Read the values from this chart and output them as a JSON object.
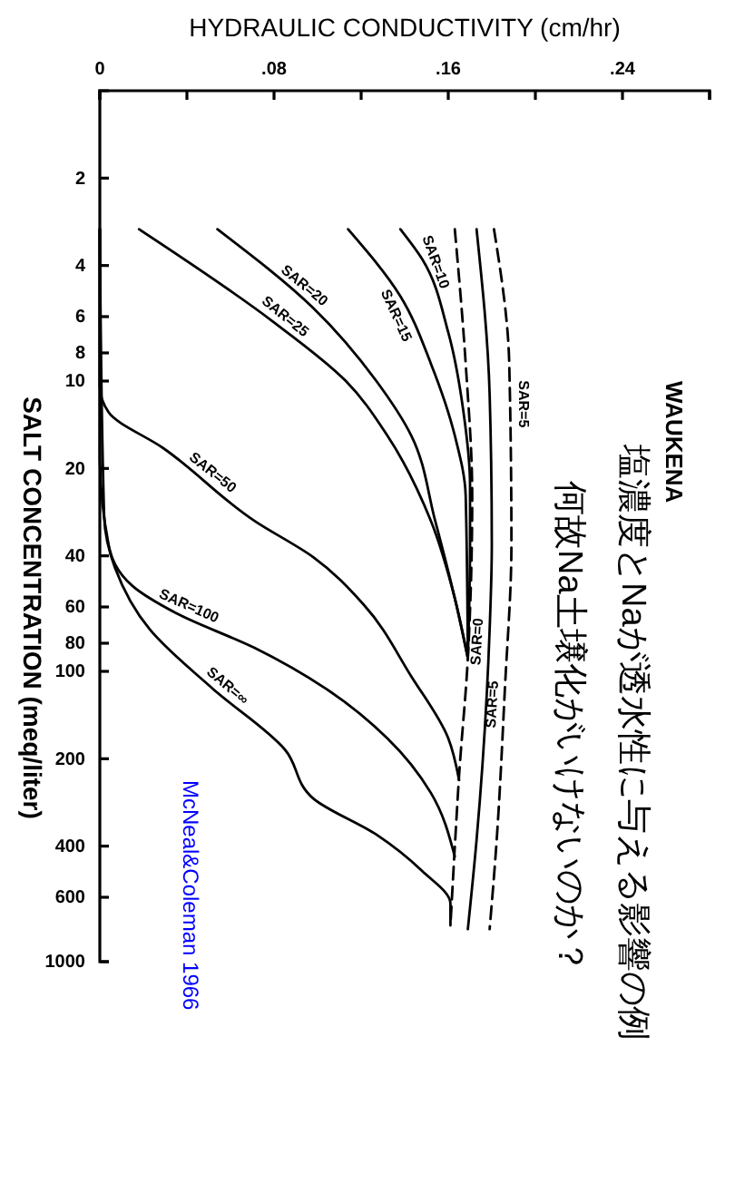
{
  "chart_data": {
    "type": "line",
    "title": "塩濃度とNaが透水性に与える影響の例",
    "subtitle": "何故Na土壌化がいけないのか？",
    "xlabel": "HYDRAULIC CONDUCTIVITY (cm/hr)",
    "ylabel": "SALT CONCENTRATION (meq/liter)",
    "log": "y",
    "ylim": [
      1000,
      1
    ],
    "yticks": [
      2,
      4,
      6,
      8,
      10,
      20,
      40,
      60,
      80,
      100,
      200,
      400,
      600,
      1000
    ],
    "xlim": [
      0,
      0.28
    ],
    "xticks": [
      0,
      {
        "value": 0.04,
        "label": null
      },
      {
        "value": 0.08,
        "label": ".08"
      },
      {
        "value": 0.12,
        "label": null
      },
      {
        "value": 0.16,
        "label": ".16"
      },
      {
        "value": 0.2,
        "label": null
      },
      {
        "value": 0.24,
        "label": ".24"
      },
      {
        "value": 0.28,
        "label": null
      }
    ],
    "series": [
      {
        "name": "SAR=10",
        "color": "#000000",
        "x": [
          0.138,
          0.148,
          0.16,
          0.167,
          0.17,
          0.17,
          0.169
        ],
        "values": [
          3,
          3.8,
          6.8,
          12.8,
          22.7,
          36.5,
          90
        ]
      },
      {
        "name": "SAR=15",
        "color": "#000000",
        "x": [
          0.114,
          0.138,
          0.152,
          0.163,
          0.168,
          0.169
        ],
        "values": [
          3,
          5.1,
          8.7,
          15.4,
          24.8,
          90
        ]
      },
      {
        "name": "SAR=20",
        "color": "#000000",
        "x": [
          0.054,
          0.098,
          0.127,
          0.143,
          0.154,
          0.163,
          0.169
        ],
        "values": [
          3,
          5.6,
          10,
          15.4,
          30.3,
          56,
          90
        ]
      },
      {
        "name": "SAR=25",
        "color": "#000000",
        "x": [
          0.018,
          0.079,
          0.113,
          0.132,
          0.152,
          0.163,
          0.169
        ],
        "values": [
          3,
          6.2,
          10,
          15.4,
          30.3,
          56,
          90
        ]
      },
      {
        "name": "SAR=50",
        "color": "#000000",
        "x": [
          0,
          0,
          0.004,
          0.029,
          0.071,
          0.098,
          0.121,
          0.143,
          0.16,
          0.165
        ],
        "values": [
          3,
          10.4,
          12.8,
          17,
          30.3,
          40.4,
          58.7,
          104,
          170,
          237
        ]
      },
      {
        "name": "SAR=100",
        "color": "#000000",
        "x": [
          0,
          0,
          0.004,
          0.015,
          0.035,
          0.071,
          0.104,
          0.132,
          0.152,
          0.163
        ],
        "values": [
          3,
          17.8,
          36.5,
          50.8,
          63,
          83,
          115,
          170,
          262,
          434
        ]
      },
      {
        "name": "SAR=∞",
        "color": "#000000",
        "x": [
          0,
          0.002,
          0.007,
          0.023,
          0.052,
          0.085,
          0.098,
          0.127,
          0.148,
          0.161,
          0.161
        ],
        "values": [
          3,
          29.4,
          44,
          71.8,
          115,
          186,
          274,
          365,
          487,
          631,
          750
        ]
      },
      {
        "color": "#000000",
        "line_style": "dashed",
        "x": [
          0.163,
          0.168,
          0.171,
          0.169,
          0.165,
          0.163,
          0.161
        ],
        "values": [
          3,
          8.7,
          24.8,
          90,
          227,
          404,
          750
        ]
      },
      {
        "name": "SAR=0",
        "color": "#000000",
        "x": [
          0.173,
          0.179,
          0.18,
          0.179,
          0.173,
          0.169
        ],
        "values": [
          3,
          11.1,
          36.5,
          71.8,
          381,
          772
        ]
      },
      {
        "name": "SAR=5",
        "color": "#000000",
        "line_style": "dashed",
        "x": [
          0.181,
          0.188,
          0.189,
          0.186,
          0.182,
          0.179
        ],
        "values": [
          3,
          8.7,
          36.5,
          115,
          404,
          772
        ]
      }
    ],
    "annotations": [
      "WAUKENA",
      "McNeal&Coleman 1966",
      {
        "text": "SAR=5",
        "x": 0.19,
        "y": 12
      }
    ]
  }
}
